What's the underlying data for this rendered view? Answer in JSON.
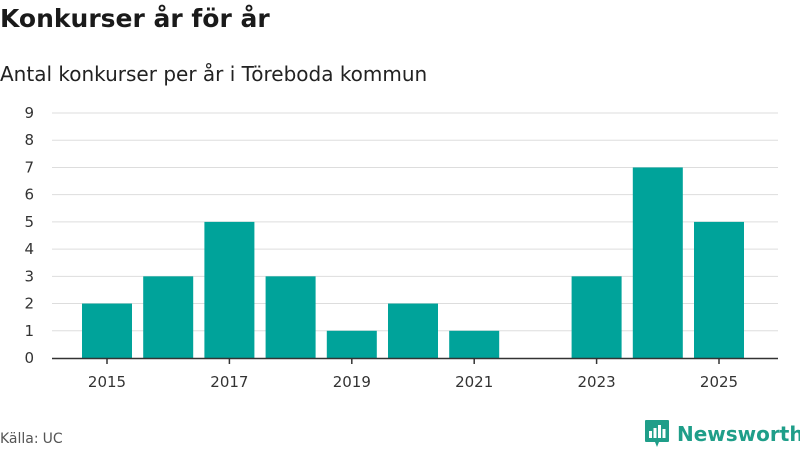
{
  "header": {
    "title": "Konkurser år för år",
    "subtitle": "Antal konkurser per år i Töreboda kommun"
  },
  "footer": {
    "source_label": "Källa:",
    "source_value": "UC",
    "brand": "Newsworthy",
    "brand_icon": "newsworthy-logo-icon"
  },
  "colors": {
    "bar": "#00a39a",
    "grid": "#dddddd",
    "axis": "#333333",
    "brand": "#1f9e89"
  },
  "chart_data": {
    "type": "bar",
    "title": "Konkurser år för år",
    "subtitle": "Antal konkurser per år i Töreboda kommun",
    "xlabel": "",
    "ylabel": "",
    "categories": [
      2015,
      2016,
      2017,
      2018,
      2019,
      2020,
      2021,
      2022,
      2023,
      2024,
      2025
    ],
    "values": [
      2,
      3,
      5,
      3,
      1,
      2,
      1,
      0,
      3,
      7,
      5
    ],
    "x_tick_labels": [
      "2015",
      "2017",
      "2019",
      "2021",
      "2023",
      "2025"
    ],
    "y_tick_labels": [
      "0",
      "1",
      "2",
      "3",
      "4",
      "5",
      "6",
      "7",
      "8",
      "9"
    ],
    "ylim": [
      0,
      9
    ],
    "grid": true,
    "legend": "none"
  }
}
